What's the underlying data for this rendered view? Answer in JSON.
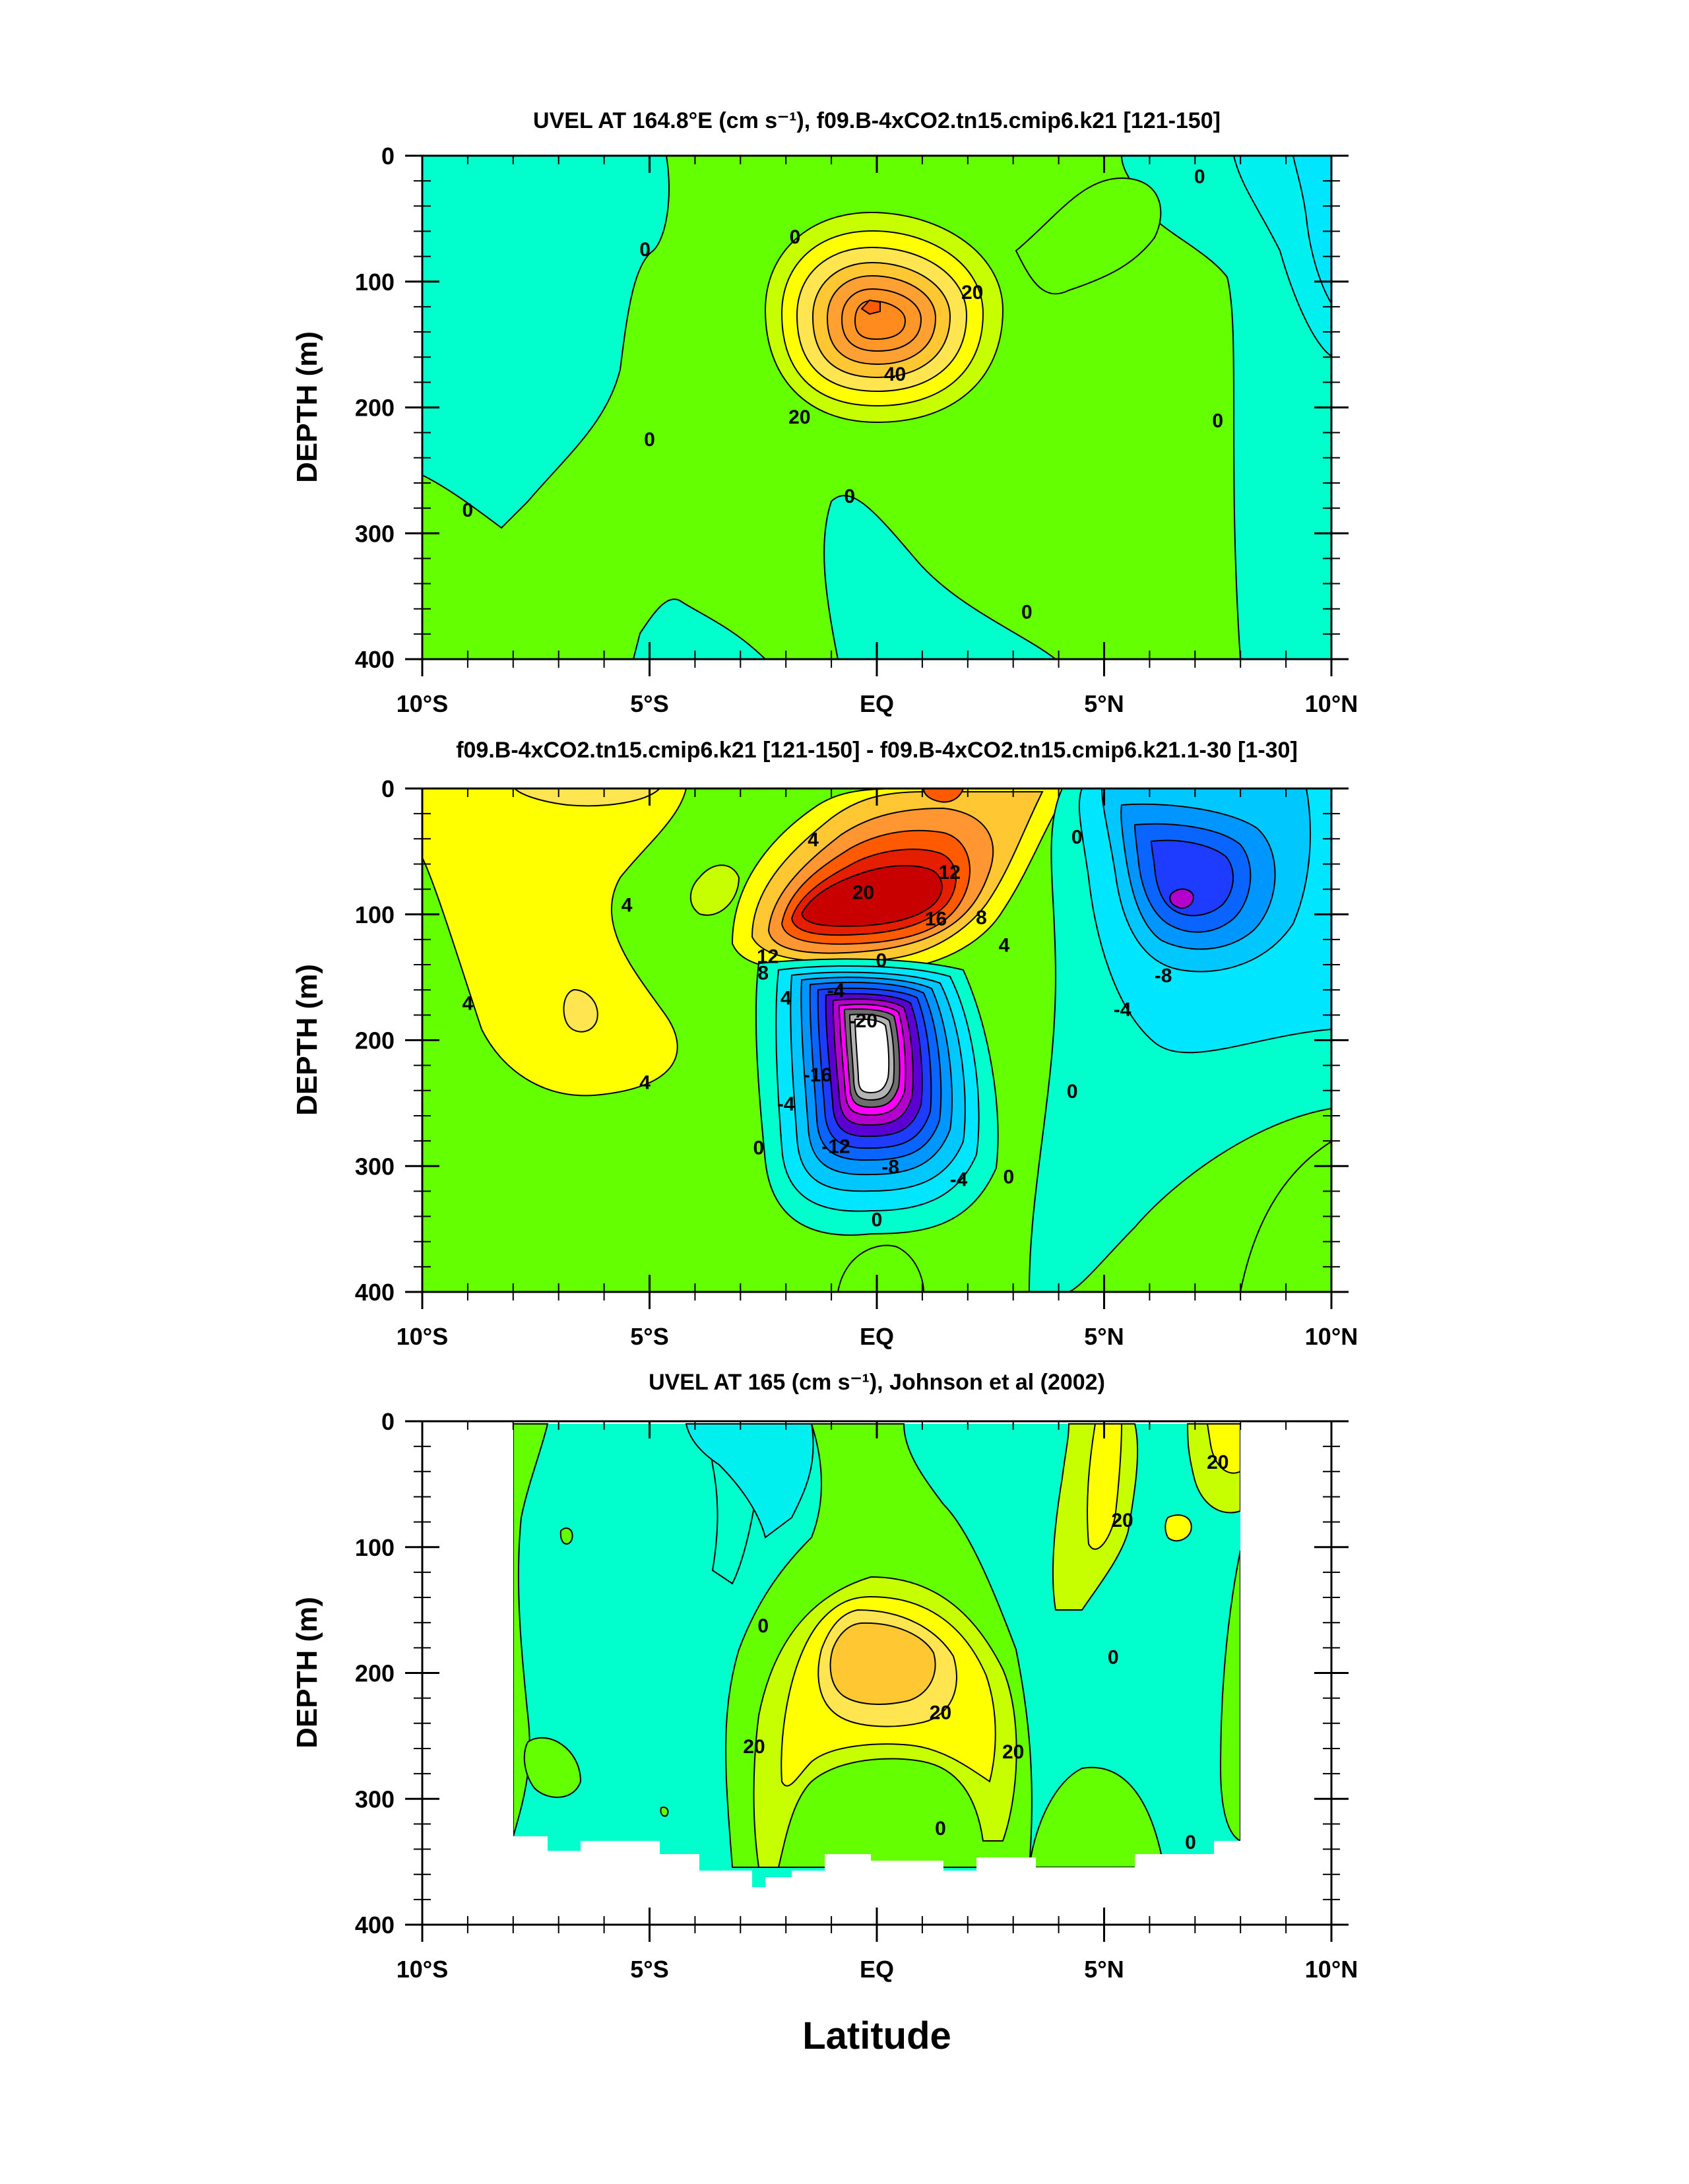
{
  "chart_data": [
    {
      "type": "contour",
      "title": "UVEL AT 164.8°E (cm s⁻¹), f09.B-4xCO2.tn15.cmip6.k21 [121-150]",
      "xlabel": "",
      "ylabel": "DEPTH (m)",
      "xlim": [
        -10,
        10
      ],
      "ylim": [
        400,
        0
      ],
      "xticks": [
        -10,
        -5,
        0,
        5,
        10
      ],
      "xtick_labels": [
        "10°S",
        "5°S",
        "EQ",
        "5°N",
        "10°N"
      ],
      "yticks": [
        0,
        100,
        200,
        300,
        400
      ],
      "ytick_labels": [
        "0",
        "100",
        "200",
        "300",
        "400"
      ],
      "contour_interval": 5,
      "contour_labels": [
        {
          "x": -5.1,
          "y": 74,
          "text": "0"
        },
        {
          "x": -1.8,
          "y": 64,
          "text": "0"
        },
        {
          "x": 2.1,
          "y": 108,
          "text": "20"
        },
        {
          "x": 0.4,
          "y": 173,
          "text": "40"
        },
        {
          "x": -1.7,
          "y": 207,
          "text": "20"
        },
        {
          "x": -5.0,
          "y": 225,
          "text": "0"
        },
        {
          "x": -9.0,
          "y": 281,
          "text": "0"
        },
        {
          "x": -0.6,
          "y": 270,
          "text": "0"
        },
        {
          "x": 3.3,
          "y": 362,
          "text": "0"
        },
        {
          "x": 7.5,
          "y": 210,
          "text": "0"
        },
        {
          "x": 7.1,
          "y": 16,
          "text": "0"
        }
      ],
      "features": [
        {
          "name": "Equatorial Undercurrent core",
          "x": 0.0,
          "y": 120,
          "max": 45,
          "units": "cm s-1"
        },
        {
          "name": "westward flow (north)",
          "x": 9.5,
          "y": 70,
          "min": -10
        },
        {
          "name": "westward flow (south)",
          "x": -8,
          "y": 80,
          "min": -5
        }
      ]
    },
    {
      "type": "contour",
      "title": "f09.B-4xCO2.tn15.cmip6.k21 [121-150] - f09.B-4xCO2.tn15.cmip6.k21.1-30 [1-30]",
      "xlabel": "",
      "ylabel": "DEPTH (m)",
      "xlim": [
        -10,
        10
      ],
      "ylim": [
        400,
        0
      ],
      "xticks": [
        -10,
        -5,
        0,
        5,
        10
      ],
      "xtick_labels": [
        "10°S",
        "5°S",
        "EQ",
        "5°N",
        "10°N"
      ],
      "yticks": [
        0,
        100,
        200,
        300,
        400
      ],
      "ytick_labels": [
        "0",
        "100",
        "200",
        "300",
        "400"
      ],
      "contour_interval": 2,
      "contour_labels": [
        {
          "x": -1.4,
          "y": 40,
          "text": "4"
        },
        {
          "x": 1.6,
          "y": 66,
          "text": "12"
        },
        {
          "x": 4.4,
          "y": 38,
          "text": "0"
        },
        {
          "x": -0.3,
          "y": 82,
          "text": "20"
        },
        {
          "x": 1.3,
          "y": 103,
          "text": "16"
        },
        {
          "x": 2.3,
          "y": 102,
          "text": "8"
        },
        {
          "x": 2.8,
          "y": 124,
          "text": "4"
        },
        {
          "x": -5.5,
          "y": 92,
          "text": "4"
        },
        {
          "x": -9.0,
          "y": 170,
          "text": "4"
        },
        {
          "x": -5.1,
          "y": 233,
          "text": "4"
        },
        {
          "x": -2.4,
          "y": 133,
          "text": "12"
        },
        {
          "x": -2.5,
          "y": 146,
          "text": "8"
        },
        {
          "x": -2.0,
          "y": 166,
          "text": "4"
        },
        {
          "x": 0.1,
          "y": 136,
          "text": "0"
        },
        {
          "x": -0.9,
          "y": 160,
          "text": "-4"
        },
        {
          "x": -0.3,
          "y": 184,
          "text": "-20"
        },
        {
          "x": -1.3,
          "y": 227,
          "text": "-16"
        },
        {
          "x": -2.0,
          "y": 250,
          "text": "-4"
        },
        {
          "x": -0.9,
          "y": 284,
          "text": "-12"
        },
        {
          "x": 0.3,
          "y": 300,
          "text": "-8"
        },
        {
          "x": 1.8,
          "y": 310,
          "text": "-4"
        },
        {
          "x": 0.0,
          "y": 342,
          "text": "0"
        },
        {
          "x": -2.6,
          "y": 285,
          "text": "0"
        },
        {
          "x": 2.9,
          "y": 308,
          "text": "0"
        },
        {
          "x": 4.3,
          "y": 240,
          "text": "0"
        },
        {
          "x": 6.3,
          "y": 148,
          "text": "-8"
        },
        {
          "x": 5.4,
          "y": 175,
          "text": "-4"
        }
      ],
      "features": [
        {
          "name": "positive anomaly core",
          "x": -0.6,
          "y": 95,
          "max": 28
        },
        {
          "name": "negative anomaly core",
          "x": -0.3,
          "y": 232,
          "min": -26
        },
        {
          "name": "negative anomaly (north)",
          "x": 6.6,
          "y": 88,
          "min": -14
        }
      ]
    },
    {
      "type": "contour",
      "title": "UVEL AT 165 (cm s⁻¹), Johnson et al (2002)",
      "xlabel": "Latitude",
      "ylabel": "DEPTH (m)",
      "xlim": [
        -10,
        10
      ],
      "ylim": [
        400,
        0
      ],
      "xticks": [
        -10,
        -5,
        0,
        5,
        10
      ],
      "xtick_labels": [
        "10°S",
        "5°S",
        "EQ",
        "5°N",
        "10°N"
      ],
      "yticks": [
        0,
        100,
        200,
        300,
        400
      ],
      "ytick_labels": [
        "0",
        "100",
        "200",
        "300",
        "400"
      ],
      "data_extent": {
        "lat": [
          -8,
          8
        ],
        "depth_max_approx": 345
      },
      "contour_interval": 10,
      "contour_labels": [
        {
          "x": 7.5,
          "y": 32,
          "text": "20"
        },
        {
          "x": 5.4,
          "y": 78,
          "text": "20"
        },
        {
          "x": -2.5,
          "y": 162,
          "text": "0"
        },
        {
          "x": 5.2,
          "y": 187,
          "text": "0"
        },
        {
          "x": 1.4,
          "y": 231,
          "text": "20"
        },
        {
          "x": -2.7,
          "y": 258,
          "text": "20"
        },
        {
          "x": 3.0,
          "y": 262,
          "text": "20"
        },
        {
          "x": 1.4,
          "y": 323,
          "text": "0"
        },
        {
          "x": 6.9,
          "y": 334,
          "text": "0"
        }
      ],
      "features": [
        {
          "name": "Equatorial Undercurrent core",
          "x": -0.2,
          "y": 185,
          "max": 40
        }
      ]
    }
  ],
  "colormap": [
    "#ffffff",
    "#b4b4b4",
    "#6e6e6e",
    "#ff00ff",
    "#b400cc",
    "#5a00d2",
    "#1e3cff",
    "#0a64ff",
    "#0096ff",
    "#00c8ff",
    "#00e6ff",
    "#00ffe6",
    "#00f0c8",
    "#28f000",
    "#64ff00",
    "#c8ff00",
    "#ffff00",
    "#ffe650",
    "#ffc832",
    "#ffa032",
    "#ff7814",
    "#ff3200",
    "#c80000"
  ]
}
